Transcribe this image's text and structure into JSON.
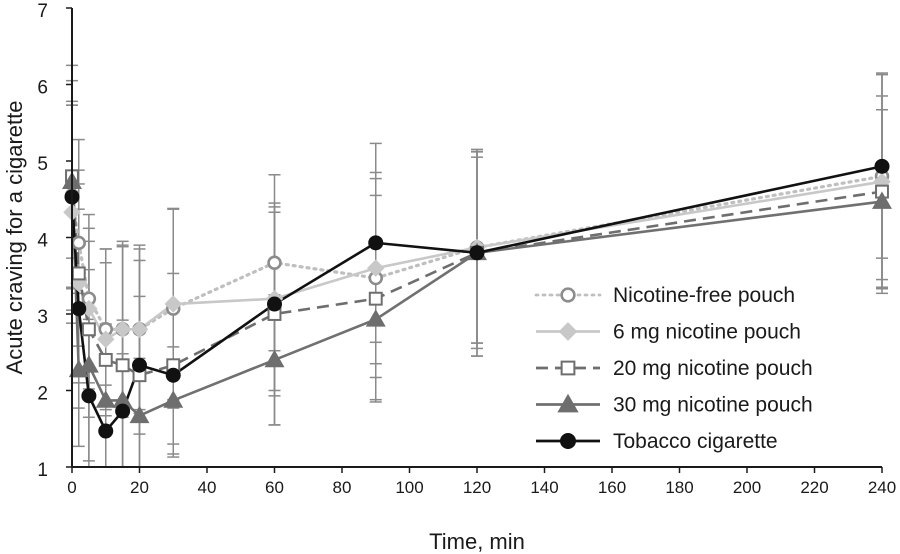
{
  "chart_data": {
    "type": "line",
    "xlabel": "Time, min",
    "ylabel": "Acute craving for a cigarette",
    "xlim": [
      0,
      240
    ],
    "ylim": [
      1,
      7
    ],
    "x_ticks": [
      0,
      20,
      40,
      60,
      80,
      100,
      120,
      140,
      160,
      180,
      200,
      220,
      240
    ],
    "y_ticks": [
      1,
      2,
      3,
      4,
      5,
      6,
      7
    ],
    "grid": false,
    "legend_position": "right",
    "error_bars": true,
    "series": [
      {
        "name": "Nicotine-free pouch",
        "color": "#8c8c8c",
        "line_style": "dotted",
        "line_color": "#bfbfbf",
        "marker": "open-circle",
        "x": [
          0,
          2,
          5,
          10,
          15,
          20,
          30,
          60,
          90,
          120,
          240
        ],
        "y": [
          4.55,
          3.93,
          3.2,
          2.8,
          2.8,
          2.8,
          3.07,
          3.67,
          3.47,
          3.87,
          4.8
        ],
        "error": [
          1.5,
          1.35,
          1.1,
          1.05,
          1.15,
          1.1,
          1.3,
          1.15,
          1.3,
          1.25,
          1.35
        ]
      },
      {
        "name": "6 mg nicotine pouch",
        "color": "#c8c8c8",
        "line_style": "solid",
        "line_color": "#c8c8c8",
        "marker": "diamond",
        "x": [
          0,
          2,
          5,
          10,
          15,
          20,
          30,
          60,
          90,
          120,
          240
        ],
        "y": [
          4.33,
          3.4,
          3.07,
          2.67,
          2.8,
          2.8,
          3.13,
          3.2,
          3.6,
          3.87,
          4.73
        ],
        "error": [
          1.45,
          1.3,
          1.05,
          1.0,
          1.1,
          1.05,
          1.25,
          1.2,
          1.25,
          1.25,
          1.4
        ]
      },
      {
        "name": "20 mg nicotine pouch",
        "color": "#6e6e6e",
        "line_style": "dashed",
        "line_color": "#6e6e6e",
        "marker": "open-square",
        "x": [
          0,
          2,
          5,
          10,
          15,
          20,
          30,
          60,
          90,
          120,
          240
        ],
        "y": [
          4.8,
          3.53,
          2.8,
          2.4,
          2.33,
          2.2,
          2.33,
          3.0,
          3.2,
          3.8,
          4.6
        ],
        "error": [
          1.45,
          1.35,
          1.15,
          1.45,
          1.55,
          1.5,
          1.2,
          1.45,
          1.35,
          1.35,
          1.25
        ]
      },
      {
        "name": "30 mg nicotine pouch",
        "color": "#6e6e6e",
        "line_style": "solid",
        "line_color": "#707070",
        "marker": "triangle",
        "x": [
          0,
          2,
          5,
          10,
          15,
          20,
          30,
          60,
          90,
          120,
          240
        ],
        "y": [
          4.73,
          2.27,
          2.33,
          1.87,
          1.87,
          1.67,
          1.87,
          2.4,
          2.93,
          3.8,
          4.47
        ],
        "error": [
          1.0,
          1.0,
          1.25,
          1.0,
          1.05,
          0.75,
          0.7,
          0.85,
          1.05,
          1.25,
          1.2
        ]
      },
      {
        "name": "Tobacco cigarette",
        "color": "#111111",
        "line_style": "solid",
        "line_color": "#111111",
        "marker": "filled-circle",
        "x": [
          0,
          2,
          5,
          10,
          15,
          20,
          30,
          60,
          90,
          120,
          240
        ],
        "y": [
          4.53,
          3.07,
          1.93,
          1.47,
          1.73,
          2.33,
          2.2,
          3.13,
          3.93,
          3.8,
          4.93
        ],
        "error": [
          1.2,
          1.3,
          1.0,
          0.6,
          0.75,
          0.9,
          0.9,
          1.2,
          1.3,
          1.35,
          1.2
        ]
      }
    ]
  }
}
